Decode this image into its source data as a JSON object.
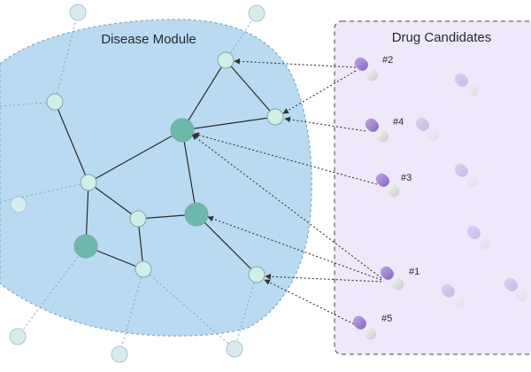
{
  "module": {
    "title": "Disease Module"
  },
  "panel": {
    "title": "Drug Candidates"
  },
  "ranks": {
    "d1": "#1",
    "d2": "#2",
    "d3": "#3",
    "d4": "#4",
    "d5": "#5"
  },
  "colors": {
    "module_fill": "#b9daf1",
    "panel_fill": "#efe7fa",
    "node": "#d3ede8",
    "hub": "#6cb9ab",
    "capsule_purple": "#9d7fd0",
    "capsule_white": "#e3e3e3"
  }
}
